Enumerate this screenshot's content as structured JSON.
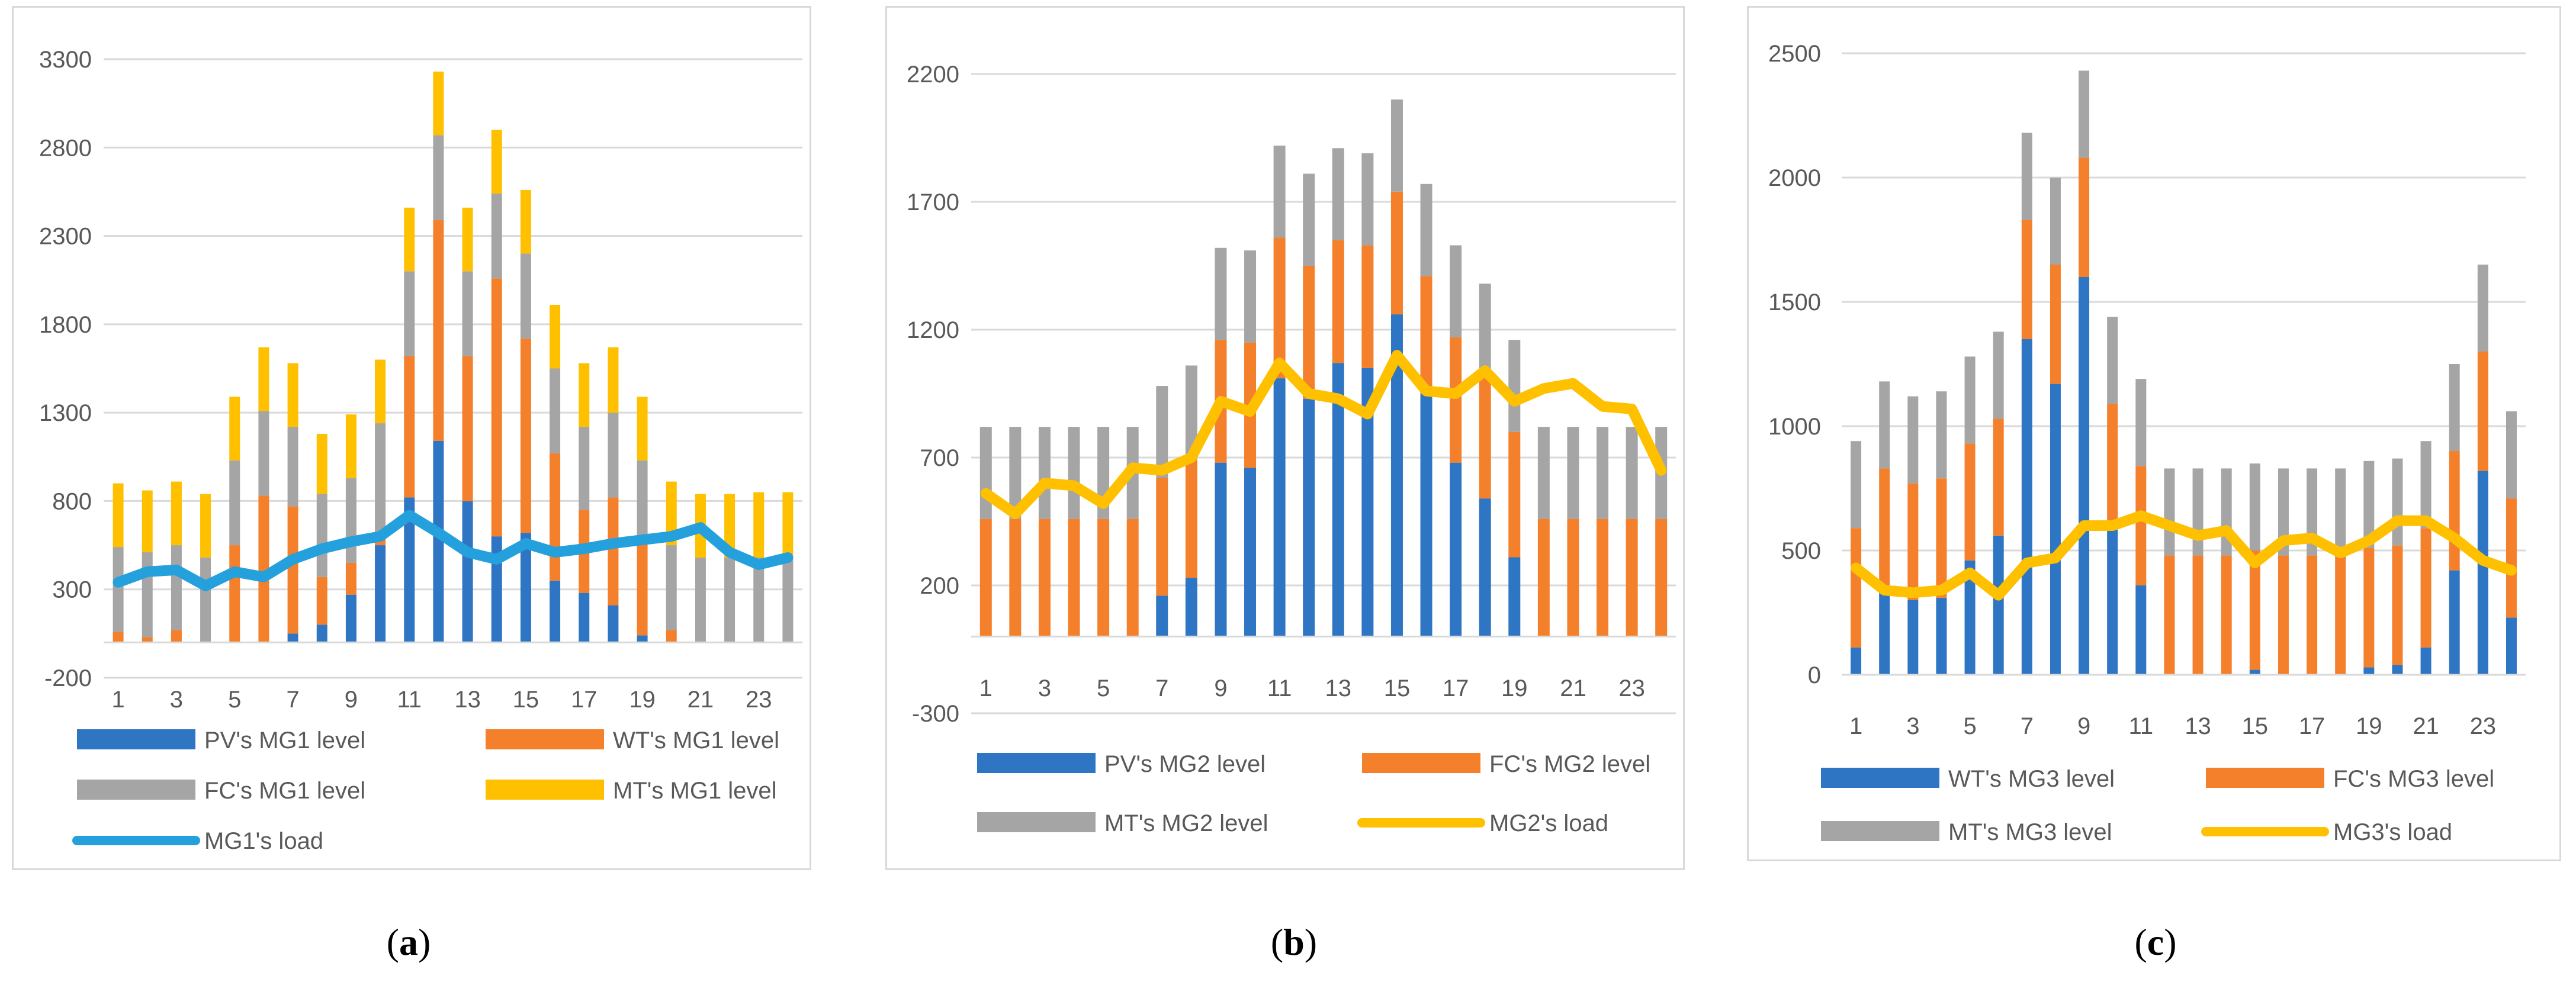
{
  "colors": {
    "pv": "#2e75c3",
    "wt": "#f4802b",
    "fc": "#a5a5a5",
    "mt": "#ffc000",
    "load_mg1": "#24a1dc",
    "load_yellow": "#ffc000",
    "grid": "#d9d9d9",
    "axis_text": "#595959"
  },
  "chart_data": [
    {
      "type": "bar",
      "stacked": true,
      "panel": "a",
      "caption_letter": "a",
      "categories": [
        "1",
        "2",
        "3",
        "4",
        "5",
        "6",
        "7",
        "8",
        "9",
        "10",
        "11",
        "12",
        "13",
        "14",
        "15",
        "16",
        "17",
        "18",
        "19",
        "20",
        "21",
        "22",
        "23",
        "24"
      ],
      "x_tick_labels": [
        "1",
        "3",
        "5",
        "7",
        "9",
        "11",
        "13",
        "15",
        "17",
        "19",
        "21",
        "23"
      ],
      "ylim": [
        -200,
        3300
      ],
      "y_ticks": [
        -200,
        300,
        800,
        1300,
        1800,
        2300,
        2800,
        3300
      ],
      "series": [
        {
          "name": "PV's MG1 level",
          "kind": "bar",
          "color_key": "pv",
          "values": [
            0,
            0,
            0,
            0,
            0,
            0,
            50,
            100,
            270,
            550,
            820,
            1140,
            800,
            600,
            620,
            350,
            280,
            210,
            40,
            0,
            0,
            0,
            0,
            0
          ]
        },
        {
          "name": "WT's MG1 level",
          "kind": "bar",
          "color_key": "wt",
          "values": [
            60,
            30,
            70,
            0,
            550,
            830,
            720,
            270,
            180,
            50,
            800,
            1250,
            820,
            1460,
            1100,
            720,
            470,
            610,
            560,
            70,
            0,
            0,
            0,
            0
          ]
        },
        {
          "name": "FC's MG1 level",
          "kind": "bar",
          "color_key": "fc",
          "values": [
            480,
            480,
            480,
            480,
            480,
            480,
            450,
            470,
            480,
            640,
            480,
            480,
            480,
            480,
            480,
            480,
            470,
            480,
            430,
            480,
            480,
            480,
            480,
            480
          ]
        },
        {
          "name": "MT's MG1 level",
          "kind": "bar",
          "color_key": "mt",
          "values": [
            360,
            350,
            360,
            360,
            360,
            360,
            360,
            340,
            360,
            360,
            360,
            360,
            360,
            360,
            360,
            360,
            360,
            370,
            360,
            360,
            360,
            360,
            370,
            370
          ]
        },
        {
          "name": "MG1's load",
          "kind": "line",
          "color_key": "load_mg1",
          "values": [
            340,
            400,
            410,
            320,
            400,
            370,
            470,
            530,
            570,
            600,
            720,
            620,
            510,
            470,
            560,
            510,
            530,
            560,
            580,
            600,
            650,
            510,
            440,
            480
          ]
        }
      ]
    },
    {
      "type": "bar",
      "stacked": true,
      "panel": "b",
      "caption_letter": "b",
      "categories": [
        "1",
        "2",
        "3",
        "4",
        "5",
        "6",
        "7",
        "8",
        "9",
        "10",
        "11",
        "12",
        "13",
        "14",
        "15",
        "16",
        "17",
        "18",
        "19",
        "20",
        "21",
        "22",
        "23",
        "24"
      ],
      "x_tick_labels": [
        "1",
        "3",
        "5",
        "7",
        "9",
        "11",
        "13",
        "15",
        "17",
        "19",
        "21",
        "23"
      ],
      "ylim": [
        -300,
        2200
      ],
      "y_ticks": [
        -300,
        200,
        700,
        1200,
        1700,
        2200
      ],
      "series": [
        {
          "name": "PV's MG2 level",
          "kind": "bar",
          "color_key": "pv",
          "values": [
            0,
            0,
            0,
            0,
            0,
            0,
            160,
            230,
            680,
            660,
            1010,
            930,
            1070,
            1050,
            1260,
            950,
            680,
            540,
            310,
            0,
            0,
            0,
            0,
            0
          ]
        },
        {
          "name": "FC's MG2 level",
          "kind": "bar",
          "color_key": "wt",
          "values": [
            460,
            460,
            460,
            460,
            460,
            460,
            460,
            460,
            480,
            490,
            550,
            520,
            480,
            480,
            480,
            460,
            490,
            480,
            490,
            460,
            460,
            460,
            460,
            460
          ]
        },
        {
          "name": "MT's MG2 level",
          "kind": "bar",
          "color_key": "fc",
          "values": [
            360,
            360,
            360,
            360,
            360,
            360,
            360,
            370,
            360,
            360,
            360,
            360,
            360,
            360,
            360,
            360,
            360,
            360,
            360,
            360,
            360,
            360,
            360,
            360
          ]
        },
        {
          "name": "MG2's load",
          "kind": "line",
          "color_key": "load_yellow",
          "values": [
            560,
            480,
            600,
            590,
            520,
            660,
            650,
            700,
            920,
            880,
            1070,
            950,
            930,
            870,
            1100,
            960,
            950,
            1040,
            920,
            970,
            990,
            900,
            890,
            650
          ]
        }
      ]
    },
    {
      "type": "bar",
      "stacked": true,
      "panel": "c",
      "caption_letter": "c",
      "categories": [
        "1",
        "2",
        "3",
        "4",
        "5",
        "6",
        "7",
        "8",
        "9",
        "10",
        "11",
        "12",
        "13",
        "14",
        "15",
        "16",
        "17",
        "18",
        "19",
        "20",
        "21",
        "22",
        "23",
        "24"
      ],
      "x_tick_labels": [
        "1",
        "3",
        "5",
        "7",
        "9",
        "11",
        "13",
        "15",
        "17",
        "19",
        "21",
        "23"
      ],
      "ylim": [
        0,
        2500
      ],
      "y_ticks": [
        0,
        500,
        1000,
        1500,
        2000,
        2500
      ],
      "series": [
        {
          "name": "WT's MG3 level",
          "kind": "bar",
          "color_key": "pv",
          "values": [
            110,
            330,
            300,
            310,
            460,
            560,
            1350,
            1170,
            1600,
            610,
            360,
            0,
            0,
            0,
            20,
            0,
            0,
            0,
            30,
            40,
            110,
            420,
            820,
            230
          ]
        },
        {
          "name": "FC's MG3 level",
          "kind": "bar",
          "color_key": "wt",
          "values": [
            480,
            500,
            470,
            480,
            470,
            470,
            480,
            480,
            480,
            480,
            480,
            480,
            480,
            480,
            480,
            480,
            480,
            480,
            480,
            480,
            480,
            480,
            480,
            480
          ]
        },
        {
          "name": "MT's MG3 level",
          "kind": "bar",
          "color_key": "fc",
          "values": [
            350,
            350,
            350,
            350,
            350,
            350,
            350,
            350,
            350,
            350,
            350,
            350,
            350,
            350,
            350,
            350,
            350,
            350,
            350,
            350,
            350,
            350,
            350,
            350
          ]
        },
        {
          "name": "MG3's load",
          "kind": "line",
          "color_key": "load_yellow",
          "values": [
            430,
            340,
            330,
            340,
            410,
            320,
            450,
            470,
            600,
            600,
            640,
            600,
            560,
            580,
            450,
            540,
            550,
            490,
            540,
            620,
            620,
            550,
            460,
            420
          ]
        }
      ]
    }
  ]
}
